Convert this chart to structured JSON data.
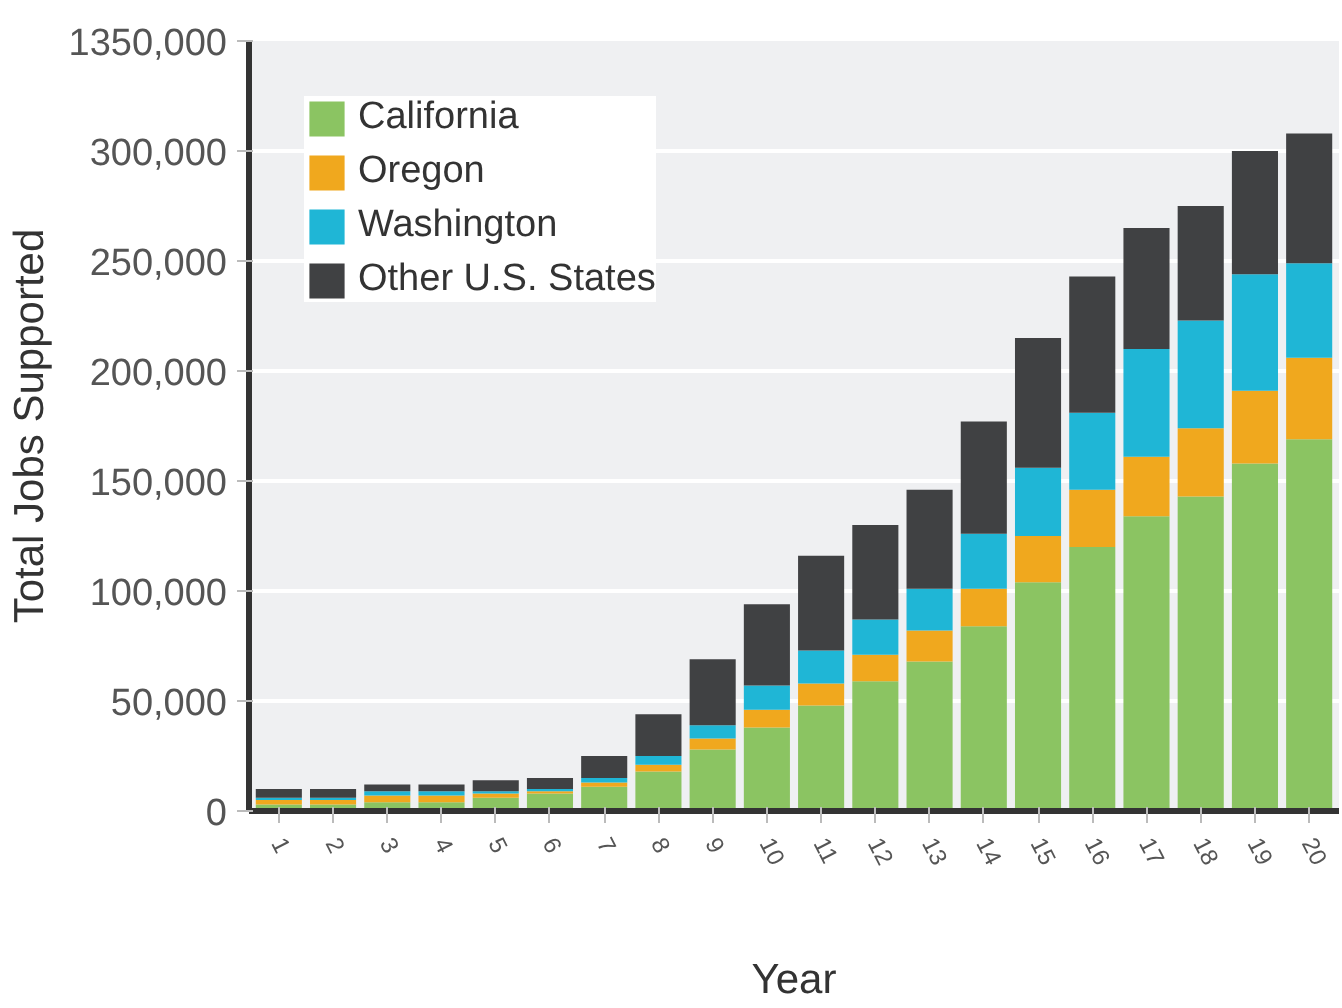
{
  "chart_data": {
    "type": "bar",
    "stacked": true,
    "xlabel": "Year",
    "ylabel": "Total Jobs Supported",
    "categories": [
      "1",
      "2",
      "3",
      "4",
      "5",
      "6",
      "7",
      "8",
      "9",
      "10",
      "11",
      "12",
      "13",
      "14",
      "15",
      "16",
      "17",
      "18",
      "19",
      "20"
    ],
    "series": [
      {
        "name": "California",
        "color": "#8bc462",
        "values": [
          3000,
          3000,
          4000,
          4000,
          6000,
          8000,
          11000,
          18000,
          28000,
          38000,
          48000,
          59000,
          68000,
          84000,
          104000,
          120000,
          134000,
          143000,
          158000,
          169000
        ]
      },
      {
        "name": "Oregon",
        "color": "#f0a81e",
        "values": [
          2000,
          2000,
          3000,
          3000,
          2000,
          1000,
          2000,
          3000,
          5000,
          8000,
          10000,
          12000,
          14000,
          17000,
          21000,
          26000,
          27000,
          31000,
          33000,
          37000
        ]
      },
      {
        "name": "Washington",
        "color": "#1fb6d6",
        "values": [
          1000,
          1000,
          2000,
          2000,
          1000,
          1000,
          2000,
          4000,
          6000,
          11000,
          15000,
          16000,
          19000,
          25000,
          31000,
          35000,
          49000,
          49000,
          53000,
          43000
        ]
      },
      {
        "name": "Other U.S. States",
        "color": "#404143",
        "values": [
          4000,
          4000,
          3000,
          3000,
          5000,
          5000,
          10000,
          19000,
          30000,
          37000,
          43000,
          43000,
          45000,
          51000,
          59000,
          62000,
          55000,
          52000,
          56000,
          59000
        ]
      }
    ],
    "ylim": [
      0,
      350000
    ],
    "yticks": [
      0,
      {
        "value": 50000,
        "label": "50,000"
      },
      {
        "value": 100000,
        "label": "100,000"
      },
      {
        "value": 150000,
        "label": "150,000"
      },
      {
        "value": 200000,
        "label": "200,000"
      },
      {
        "value": 250000,
        "label": "250,000"
      },
      {
        "value": 300000,
        "label": "300,000"
      },
      {
        "value": 350000,
        "label": "1350,000"
      }
    ],
    "grid": "y",
    "legend": "top left"
  }
}
